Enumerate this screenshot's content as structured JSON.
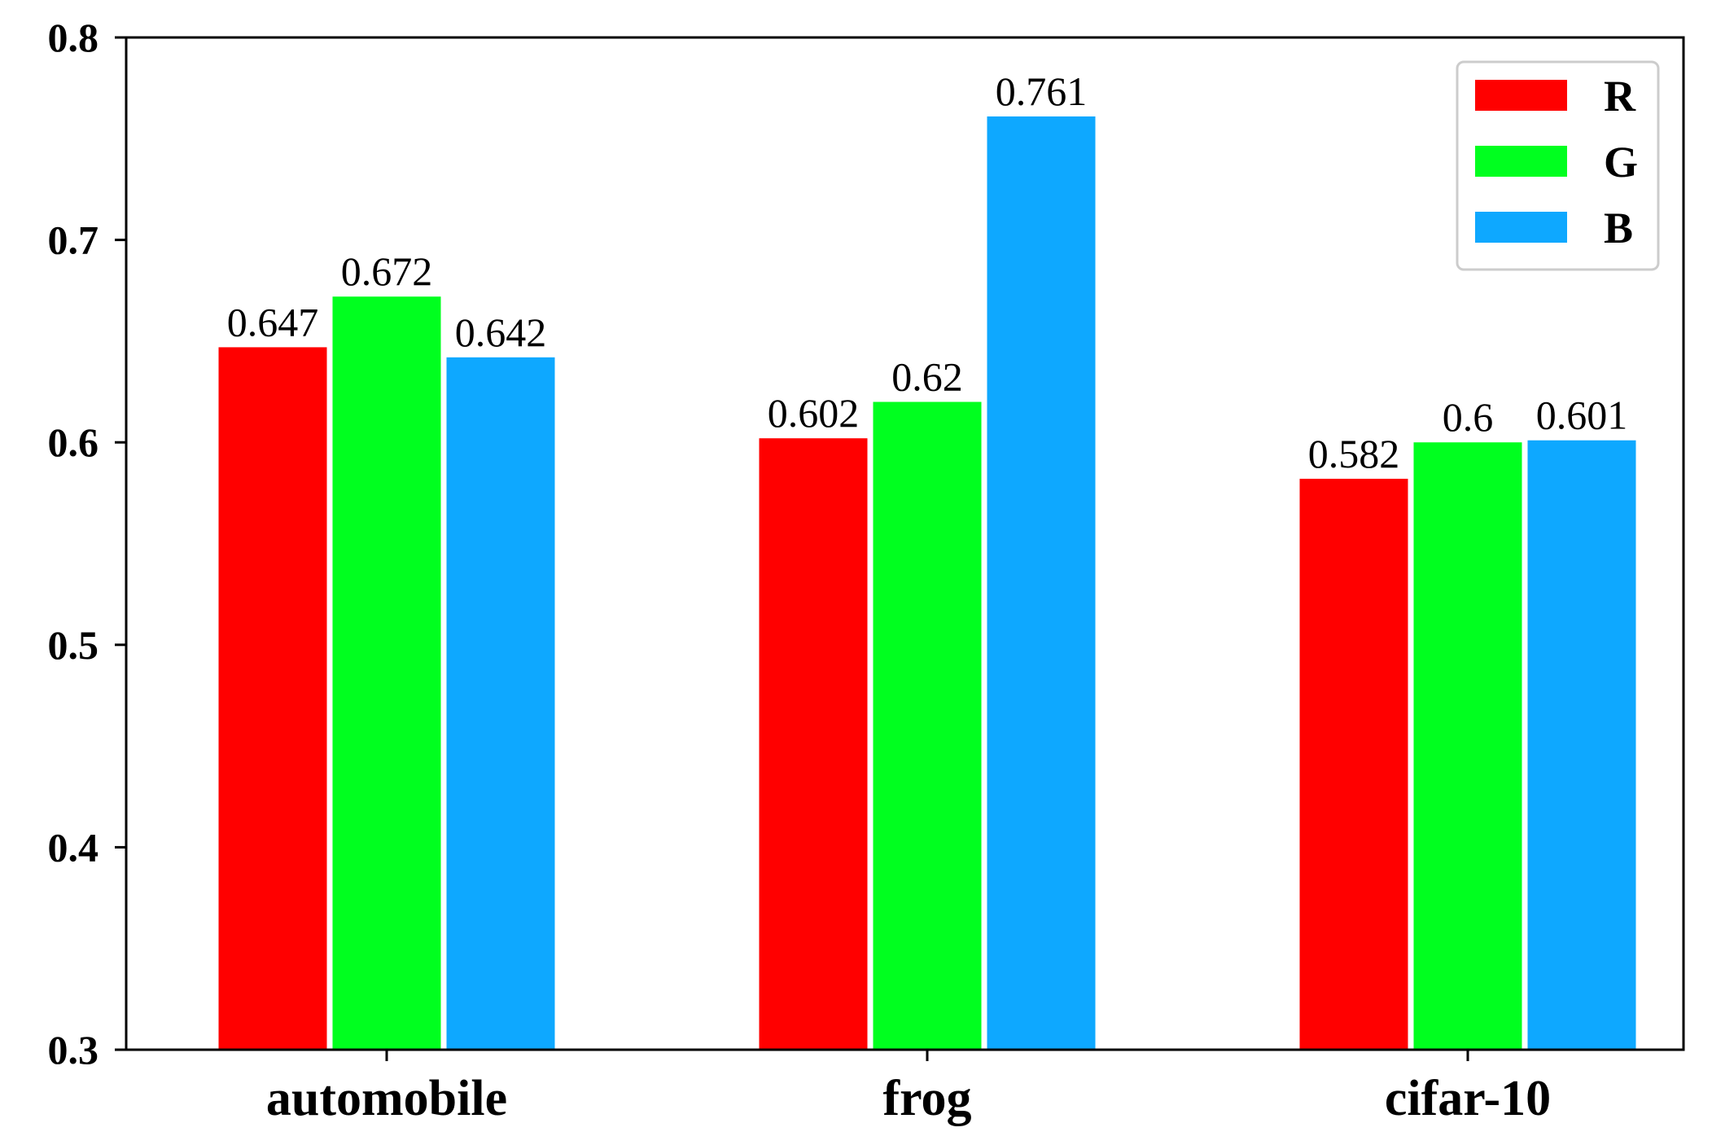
{
  "chart_data": {
    "type": "bar",
    "title": "",
    "xlabel": "",
    "ylabel": "",
    "categories": [
      "automobile",
      "frog",
      "cifar-10"
    ],
    "series": [
      {
        "name": "R",
        "color": "#ff0000",
        "values": [
          0.647,
          0.602,
          0.582
        ],
        "labels": [
          "0.647",
          "0.602",
          "0.582"
        ]
      },
      {
        "name": "G",
        "color": "#00ff1f",
        "values": [
          0.672,
          0.62,
          0.6
        ],
        "labels": [
          "0.672",
          "0.62",
          "0.6"
        ]
      },
      {
        "name": "B",
        "color": "#0ea8ff",
        "values": [
          0.642,
          0.761,
          0.601
        ],
        "labels": [
          "0.642",
          "0.761",
          "0.601"
        ]
      }
    ],
    "ylim": [
      0.3,
      0.8
    ],
    "yticks": [
      0.3,
      0.4,
      0.5,
      0.6,
      0.7,
      0.8
    ],
    "ytick_labels": [
      "0.3",
      "0.4",
      "0.5",
      "0.6",
      "0.7",
      "0.8"
    ],
    "grid": false,
    "legend": "top-right"
  }
}
